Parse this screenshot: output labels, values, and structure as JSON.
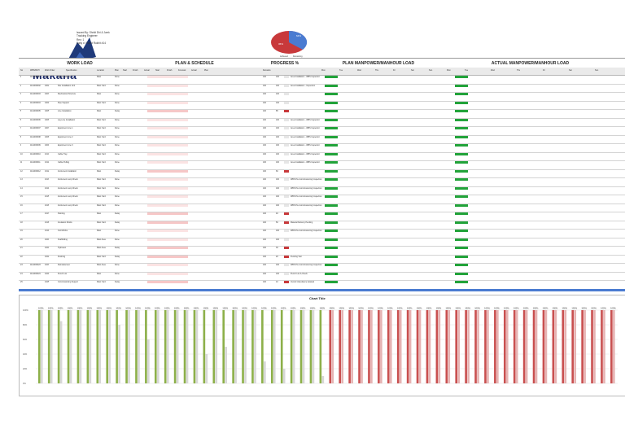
{
  "logo": {
    "text": "Makana",
    "icon": "makana-logo-icon"
  },
  "meta": {
    "lines": [
      "Issued By: Shrkit Dhi & Jwnk",
      "Tracking Engineer",
      "Rev: 1",
      "Daily #: Rakrit Rukhit #14"
    ]
  },
  "pie": {
    "labels": [
      "64%",
      "36%"
    ],
    "legend": [
      "Achieved",
      "Remaining"
    ]
  },
  "headers": {
    "work_load": "WORK LOAD",
    "plan_schedule": "PLAN & SCHEDULE",
    "progress": "PROGRESS %",
    "plan_manpower": "PLAN MANPOWER/MANHOUR LOAD",
    "actual_manpower": "ACTUAL MANPOWER/MANHOUR LOAD"
  },
  "sub_headers": [
    "No",
    "WBS/MSH",
    "Work Order",
    "Specification",
    "Location",
    "Plan",
    "Start",
    "Finish",
    "Actual",
    "Start",
    "Finish",
    "Forecast",
    "Actual",
    "Plan",
    "Remarks",
    "Mon",
    "Tue",
    "Wed",
    "Thu",
    "Fri",
    "Sat",
    "Sun",
    "Mon",
    "Tue",
    "Wed",
    "Thu",
    "Fri",
    "Sat",
    "Sun"
  ],
  "rows": [
    {
      "no": "1",
      "wbs": "1111000001",
      "code": "1001",
      "desc": "Pad Installation",
      "loc": "Main",
      "status": "Done",
      "plan": "100",
      "act": "100",
      "rem": "Area Installation - WBS Inspection"
    },
    {
      "no": "2",
      "wbs": "1111000002",
      "code": "1002",
      "desc": "Site Installation Unit",
      "loc": "Main Yard",
      "status": "Done",
      "plan": "100",
      "act": "100",
      "rem": "Area Installation - Inspection"
    },
    {
      "no": "3",
      "wbs": "1111000003",
      "code": "1003",
      "desc": "Mechanical Structure",
      "loc": "Main",
      "status": "Done",
      "plan": "100",
      "act": "100",
      "rem": ""
    },
    {
      "no": "4",
      "wbs": "1111000004",
      "code": "1004",
      "desc": "Pipe Support",
      "loc": "Main Yard",
      "status": "Done",
      "plan": "100",
      "act": "100",
      "rem": ""
    },
    {
      "no": "5",
      "wbs": "1111000005",
      "code": "1005",
      "desc": "Line Installation",
      "loc": "Main",
      "status": "Delay",
      "plan": "100",
      "act": "85",
      "rem": ""
    },
    {
      "no": "6",
      "wbs": "1111000006",
      "code": "1006",
      "desc": "Lay-Line Installation",
      "loc": "Main Yard",
      "status": "Done",
      "plan": "100",
      "act": "100",
      "rem": "Area Installation - WBS Inspection"
    },
    {
      "no": "7",
      "wbs": "1111000007",
      "code": "1007",
      "desc": "Equipment Line 1",
      "loc": "Main Yard",
      "status": "Done",
      "plan": "100",
      "act": "100",
      "rem": "Area Installation - WBS Inspection"
    },
    {
      "no": "8",
      "wbs": "1111000008",
      "code": "1008",
      "desc": "Equipment Line 2",
      "loc": "Main Yard",
      "status": "Done",
      "plan": "100",
      "act": "100",
      "rem": "Area Installation - WBS Inspection"
    },
    {
      "no": "9",
      "wbs": "1111000009",
      "code": "1009",
      "desc": "Equipment Line 3",
      "loc": "Main Yard",
      "status": "Done",
      "plan": "100",
      "act": "100",
      "rem": "Area Installation - WBS Inspection"
    },
    {
      "no": "10",
      "wbs": "1111000010",
      "code": "1010",
      "desc": "Cable Tray",
      "loc": "Main Yard",
      "status": "Done",
      "plan": "100",
      "act": "100",
      "rem": "Area Installation - WBS Inspection"
    },
    {
      "no": "11",
      "wbs": "1111000011",
      "code": "1011",
      "desc": "Cable Pulling",
      "loc": "Main Yard",
      "status": "Done",
      "plan": "100",
      "act": "100",
      "rem": "Area Installation - WBS Inspection"
    },
    {
      "no": "12",
      "wbs": "1111000012",
      "code": "1012",
      "desc": "Instrument Installation",
      "loc": "Main",
      "status": "Delay",
      "plan": "100",
      "act": "60",
      "rem": ""
    },
    {
      "no": "13",
      "wbs": "",
      "code": "1013",
      "desc": "Instrument Loop Check",
      "loc": "Main Yard",
      "status": "Done",
      "plan": "100",
      "act": "100",
      "rem": "WBS Pre-Commissioning Inspection"
    },
    {
      "no": "14",
      "wbs": "",
      "code": "1014",
      "desc": "Instrument Loop Check",
      "loc": "Main Yard",
      "status": "Done",
      "plan": "100",
      "act": "100",
      "rem": "WBS Pre-Commissioning Inspection"
    },
    {
      "no": "15",
      "wbs": "",
      "code": "1015",
      "desc": "Instrument Loop Check",
      "loc": "Main Yard",
      "status": "Done",
      "plan": "100",
      "act": "100",
      "rem": "WBS Pre-Commissioning Inspection"
    },
    {
      "no": "16",
      "wbs": "",
      "code": "1016",
      "desc": "Instrument Loop Check",
      "loc": "Main Yard",
      "status": "Done",
      "plan": "100",
      "act": "100",
      "rem": "WBS Pre-Commissioning Inspection"
    },
    {
      "no": "17",
      "wbs": "",
      "code": "1017",
      "desc": "Painting",
      "loc": "Main",
      "status": "Delay",
      "plan": "100",
      "act": "40",
      "rem": ""
    },
    {
      "no": "18",
      "wbs": "",
      "code": "1018",
      "desc": "Insulation Works",
      "loc": "Main Yard",
      "status": "Delay",
      "plan": "100",
      "act": "50",
      "rem": "Material Delivery Pending"
    },
    {
      "no": "19",
      "wbs": "",
      "code": "1019",
      "desc": "Civil Works",
      "loc": "Main",
      "status": "Done",
      "plan": "100",
      "act": "100",
      "rem": "WBS Pre-Commissioning Inspection"
    },
    {
      "no": "20",
      "wbs": "",
      "code": "1020",
      "desc": "Scaffolding",
      "loc": "Main Area",
      "status": "Done",
      "plan": "100",
      "act": "100",
      "rem": ""
    },
    {
      "no": "21",
      "wbs": "",
      "code": "1021",
      "desc": "Hydrotest",
      "loc": "Main Area",
      "status": "Delay",
      "plan": "100",
      "act": "30",
      "rem": ""
    },
    {
      "no": "22",
      "wbs": "",
      "code": "1022",
      "desc": "Flushing",
      "loc": "Main Yard",
      "status": "Delay",
      "plan": "100",
      "act": "20",
      "rem": "Pending Test"
    },
    {
      "no": "23",
      "wbs": "1111000023",
      "code": "1023",
      "desc": "Reinstatement",
      "loc": "Main Area",
      "status": "Done",
      "plan": "100",
      "act": "100",
      "rem": "WBS Pre-Commissioning Inspection"
    },
    {
      "no": "24",
      "wbs": "1111000024",
      "code": "1024",
      "desc": "Punch List",
      "loc": "Main",
      "status": "Done",
      "plan": "100",
      "act": "100",
      "rem": "Punch List A-Check"
    },
    {
      "no": "25",
      "wbs": "",
      "code": "1025",
      "desc": "Commissioning Support",
      "loc": "Main Yard",
      "status": "Delay",
      "plan": "100",
      "act": "10",
      "rem": "Vendor Attendance Awaited"
    }
  ],
  "chart": {
    "title": "Chart Title",
    "bars": [
      100,
      100,
      100,
      100,
      100,
      100,
      100,
      100,
      100,
      100,
      100,
      100,
      100,
      100,
      100,
      100,
      100,
      100,
      100,
      100,
      100,
      100,
      100,
      100,
      100,
      100,
      100,
      100,
      100,
      100,
      100,
      100,
      100,
      100,
      100,
      100,
      100,
      100,
      100,
      100,
      100,
      100,
      100,
      100,
      100,
      100,
      100,
      100,
      100,
      100,
      100,
      100,
      100,
      100,
      100,
      100,
      100,
      100,
      100,
      100
    ],
    "actual": [
      100,
      100,
      85,
      100,
      100,
      100,
      100,
      100,
      80,
      100,
      100,
      60,
      100,
      100,
      100,
      100,
      100,
      40,
      100,
      50,
      100,
      100,
      100,
      30,
      100,
      20,
      100,
      100,
      100,
      10,
      100,
      100,
      100,
      100,
      100,
      100,
      100,
      100,
      100,
      100,
      100,
      100,
      100,
      100,
      100,
      100,
      100,
      100,
      100,
      100,
      100,
      100,
      100,
      100,
      100,
      100,
      100,
      100,
      100,
      100
    ]
  },
  "colors": {
    "green": "#22a33a",
    "red": "#c8393b",
    "blue": "#4a7bd1",
    "pink": "#f6c7c7",
    "greenbar": "#8db04a",
    "redbar": "#c95050"
  }
}
